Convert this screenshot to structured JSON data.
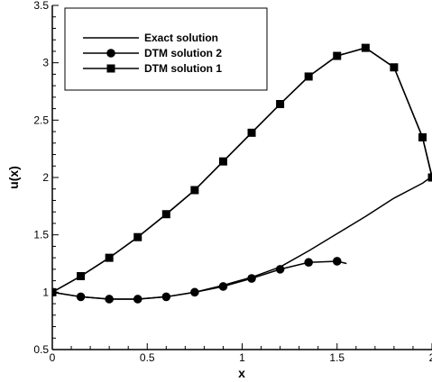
{
  "chart_data": {
    "type": "line",
    "xlabel": "x",
    "ylabel": "u(x)",
    "xlim": [
      0,
      2
    ],
    "ylim": [
      0.5,
      3.5
    ],
    "x_ticks": [
      0,
      0.5,
      1,
      1.5,
      2
    ],
    "x_tick_labels": [
      "0",
      "0.5",
      "1",
      "1.5",
      "2"
    ],
    "y_ticks": [
      0.5,
      1,
      1.5,
      2,
      2.5,
      3,
      3.5
    ],
    "y_tick_labels": [
      "0.5",
      "1",
      "1.5",
      "2",
      "2.5",
      "3",
      "3.5"
    ],
    "grid": false,
    "legend_position": "top-left",
    "series": [
      {
        "name": "Exact solution",
        "marker": "none",
        "color": "#000000",
        "x": [
          0,
          0.15,
          0.3,
          0.45,
          0.6,
          0.75,
          0.9,
          1.05,
          1.2,
          1.35,
          1.5,
          1.65,
          1.8,
          1.95,
          2.0,
          1.95,
          1.8,
          1.65,
          1.5,
          1.35,
          1.2,
          1.05,
          0.9,
          0.75,
          0.6,
          0.45,
          0.3,
          0.15,
          0
        ],
        "y": [
          1.0,
          0.96,
          0.94,
          0.94,
          0.96,
          1.0,
          1.06,
          1.13,
          1.22,
          1.36,
          1.51,
          1.66,
          1.82,
          1.95,
          2.01,
          2.35,
          2.96,
          3.13,
          3.06,
          2.88,
          2.64,
          2.39,
          2.14,
          1.89,
          1.68,
          1.48,
          1.3,
          1.14,
          1.0
        ]
      },
      {
        "name": "DTM solution 2",
        "marker": "circle",
        "color": "#000000",
        "x": [
          0,
          0.15,
          0.3,
          0.45,
          0.6,
          0.75,
          0.9,
          1.05,
          1.2,
          1.35,
          1.5,
          1.55
        ],
        "y": [
          1.0,
          0.96,
          0.94,
          0.94,
          0.96,
          1.0,
          1.05,
          1.12,
          1.2,
          1.26,
          1.27,
          1.25
        ]
      },
      {
        "name": "DTM solution 1",
        "marker": "square",
        "color": "#000000",
        "x": [
          0,
          0.15,
          0.3,
          0.45,
          0.6,
          0.75,
          0.9,
          1.05,
          1.2,
          1.35,
          1.5,
          1.65,
          1.8,
          1.95,
          2.0
        ],
        "y": [
          1.0,
          1.14,
          1.3,
          1.48,
          1.68,
          1.89,
          2.14,
          2.39,
          2.64,
          2.88,
          3.06,
          3.13,
          2.96,
          2.35,
          2.0
        ]
      }
    ]
  }
}
